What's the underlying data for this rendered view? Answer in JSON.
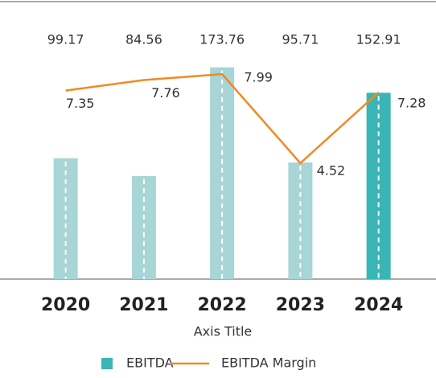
{
  "chart_data": {
    "type": "bar-line",
    "categories": [
      "2020",
      "2021",
      "2022",
      "2023",
      "2024"
    ],
    "x_axis_title": "Axis Title",
    "series": [
      {
        "name": "EBITDA",
        "type": "bar",
        "color": "#3ab5b5",
        "colors": [
          "#a8d5d5",
          "#a8d5d5",
          "#a8d5d5",
          "#a8d5d5",
          "#3ab5b5"
        ],
        "values": [
          99.17,
          84.56,
          173.76,
          95.71,
          152.91
        ]
      },
      {
        "name": "EBITDA Margin",
        "type": "line",
        "axis": "y2",
        "color": "#f08a24",
        "values": [
          7.35,
          7.76,
          7.99,
          4.52,
          7.28
        ]
      }
    ],
    "ylim": [
      0,
      200
    ],
    "y2lim": [
      0,
      9.5
    ]
  }
}
